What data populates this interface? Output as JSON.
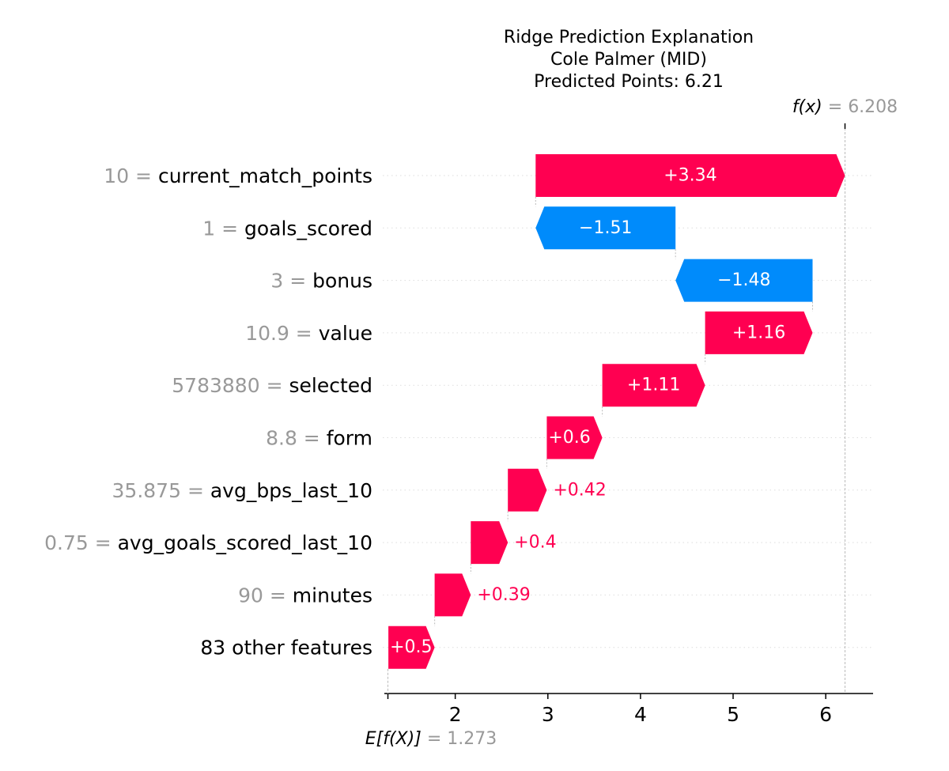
{
  "chart_data": {
    "type": "waterfall",
    "title_lines": [
      "Ridge Prediction Explanation",
      "Cole Palmer (MID)",
      "Predicted Points: 6.21"
    ],
    "base_value": 1.273,
    "base_value_label": "1.273",
    "base_value_name": "E[f(X)]",
    "final_value": 6.208,
    "final_value_label": "6.208",
    "final_value_name": "f(x)",
    "xlim": [
      1.273,
      6.208
    ],
    "xticks": [
      2,
      3,
      4,
      5,
      6
    ],
    "features": [
      {
        "value": "10",
        "name": "current_match_points",
        "contribution": 3.34,
        "label": "+3.34"
      },
      {
        "value": "1",
        "name": "goals_scored",
        "contribution": -1.51,
        "label": "−1.51"
      },
      {
        "value": "3",
        "name": "bonus",
        "contribution": -1.48,
        "label": "−1.48"
      },
      {
        "value": "10.9",
        "name": "value",
        "contribution": 1.16,
        "label": "+1.16"
      },
      {
        "value": "5783880",
        "name": "selected",
        "contribution": 1.11,
        "label": "+1.11"
      },
      {
        "value": "8.8",
        "name": "form",
        "contribution": 0.6,
        "label": "+0.6"
      },
      {
        "value": "35.875",
        "name": "avg_bps_last_10",
        "contribution": 0.42,
        "label": "+0.42"
      },
      {
        "value": "0.75",
        "name": "avg_goals_scored_last_10",
        "contribution": 0.4,
        "label": "+0.4"
      },
      {
        "value": "90",
        "name": "minutes",
        "contribution": 0.39,
        "label": "+0.39"
      },
      {
        "value": "",
        "name": "83 other features",
        "contribution": 0.5,
        "label": "+0.5"
      }
    ],
    "colors": {
      "positive": "#ff0051",
      "negative": "#008bfb",
      "feature_value": "#999999",
      "text": "#000000"
    }
  }
}
